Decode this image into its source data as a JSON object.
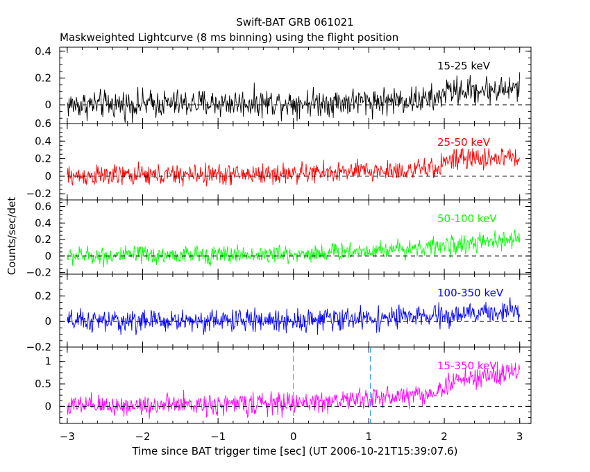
{
  "chart_data": {
    "type": "line",
    "title": "Swift-BAT GRB 061021",
    "subtitle": "Maskweighted Lightcurve (8 ms binning) using the flight position",
    "xlabel": "Time since BAT trigger time [sec] (UT 2006-10-21T15:39:07.6)",
    "ylabel": "Counts/sec/det",
    "xlim": [
      -3.1,
      3.15
    ],
    "x_ticks": [
      -3,
      -2,
      -1,
      0,
      1,
      2,
      3
    ],
    "x_tick_labels": [
      "−3",
      "−2",
      "−1",
      "0",
      "1",
      "2",
      "3"
    ],
    "bin_seconds": 0.008,
    "x_range": [
      -3.0,
      3.0
    ],
    "markers": [
      0.0,
      1.02
    ],
    "series": [
      {
        "name": "15-25 keV",
        "color": "#000000",
        "ylim": [
          -0.14,
          0.43
        ],
        "yticks": [
          0,
          0.2,
          0.4
        ],
        "ytick_labels": [
          "0",
          "0.2",
          "0.4"
        ],
        "noise_sigma": 0.065,
        "profile_t": [
          -3.0,
          0.5,
          1.9,
          2.0,
          3.0
        ],
        "profile_v": [
          0.0,
          0.02,
          0.04,
          0.1,
          0.12
        ]
      },
      {
        "name": "25-50 keV",
        "color": "#ff0000",
        "ylim": [
          -0.27,
          0.6
        ],
        "yticks": [
          -0.2,
          0,
          0.2,
          0.4,
          0.6
        ],
        "ytick_labels": [
          "−0.2",
          "0",
          "0.2",
          "0.4",
          "0.6"
        ],
        "noise_sigma": 0.075,
        "profile_t": [
          -3.0,
          0.0,
          1.9,
          2.0,
          3.0
        ],
        "profile_v": [
          0.0,
          0.03,
          0.08,
          0.18,
          0.22
        ]
      },
      {
        "name": "50-100 keV",
        "color": "#00ff00",
        "ylim": [
          -0.22,
          0.68
        ],
        "yticks": [
          -0.2,
          0,
          0.2,
          0.4,
          0.6
        ],
        "ytick_labels": [
          "−0.2",
          "0",
          "0.2",
          "0.4",
          "0.6"
        ],
        "noise_sigma": 0.07,
        "profile_t": [
          -3.0,
          0.0,
          1.0,
          2.0,
          3.0
        ],
        "profile_v": [
          0.0,
          0.02,
          0.07,
          0.12,
          0.2
        ]
      },
      {
        "name": "100-350 keV",
        "color": "#0000ff",
        "ylim": [
          -0.2,
          0.37
        ],
        "yticks": [
          -0.2,
          0,
          0.2
        ],
        "ytick_labels": [
          "−0.2",
          "0",
          "0.2"
        ],
        "noise_sigma": 0.055,
        "profile_t": [
          -3.0,
          0.0,
          2.0,
          3.0
        ],
        "profile_v": [
          0.0,
          0.01,
          0.04,
          0.09
        ]
      },
      {
        "name": "15-350 keV",
        "color": "#ff00ff",
        "ylim": [
          -0.38,
          1.32
        ],
        "yticks": [
          0,
          0.5,
          1
        ],
        "ytick_labels": [
          "0",
          "0.5",
          "1"
        ],
        "noise_sigma": 0.15,
        "profile_t": [
          -3.0,
          0.0,
          1.0,
          1.9,
          2.1,
          3.0
        ],
        "profile_v": [
          0.0,
          0.07,
          0.17,
          0.3,
          0.55,
          0.78
        ]
      }
    ]
  }
}
